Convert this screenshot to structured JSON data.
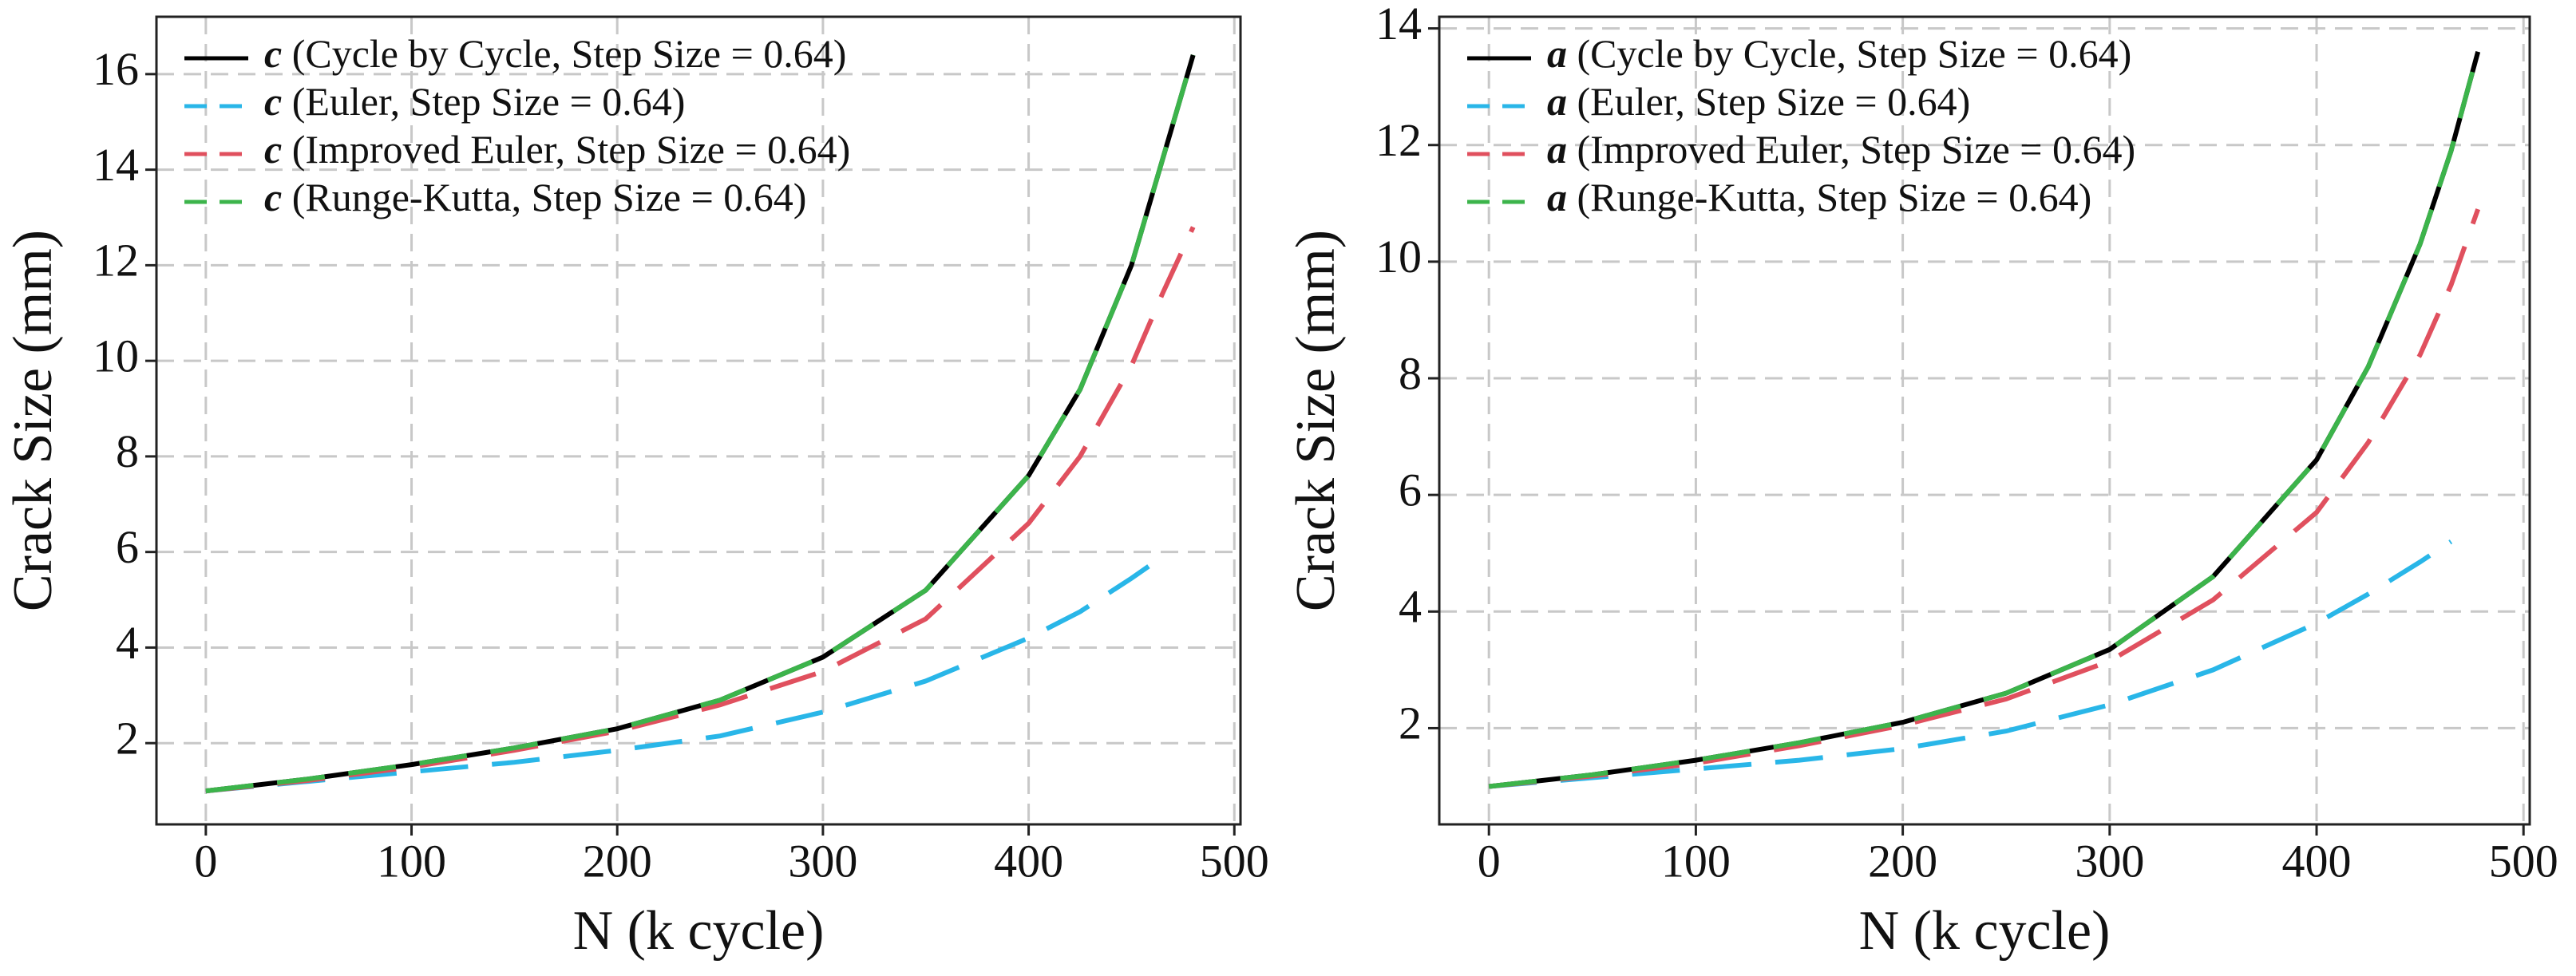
{
  "chart_data": [
    {
      "type": "line",
      "xlabel": "N (k cycle)",
      "ylabel": "Crack Size (mm)",
      "x": [
        0,
        50,
        100,
        150,
        200,
        250,
        300,
        350,
        400,
        425,
        450,
        465,
        480
      ],
      "series": [
        {
          "name": "c (Cycle by Cycle, Step Size = 0.64)",
          "color": "#000000",
          "dash": false,
          "values": [
            1.0,
            1.25,
            1.55,
            1.9,
            2.3,
            2.9,
            3.8,
            5.2,
            7.6,
            9.4,
            12.0,
            14.2,
            16.4
          ]
        },
        {
          "name": "c (Euler, Step Size = 0.64)",
          "color": "#29b6e8",
          "dash": true,
          "values": [
            1.0,
            1.2,
            1.4,
            1.6,
            1.85,
            2.15,
            2.65,
            3.3,
            4.2,
            4.75,
            5.45,
            5.9,
            null
          ]
        },
        {
          "name": "c (Improved Euler, Step Size = 0.64)",
          "color": "#e0505e",
          "dash": true,
          "values": [
            1.0,
            1.22,
            1.5,
            1.85,
            2.25,
            2.8,
            3.5,
            4.6,
            6.6,
            8.0,
            9.9,
            11.4,
            12.8
          ]
        },
        {
          "name": "c (Runge-Kutta, Step Size = 0.64)",
          "color": "#3cb44b",
          "dash": true,
          "values": [
            1.0,
            1.25,
            1.55,
            1.9,
            2.3,
            2.9,
            3.8,
            5.2,
            7.6,
            9.4,
            12.0,
            14.2,
            16.4
          ]
        }
      ],
      "xlim": [
        -24,
        503
      ],
      "xticks": [
        0,
        100,
        200,
        300,
        400,
        500
      ],
      "ylim": [
        0.3,
        17.2
      ],
      "yticks": [
        2,
        4,
        6,
        8,
        10,
        12,
        14,
        16
      ],
      "grid": true,
      "legend": "upper left"
    },
    {
      "type": "line",
      "xlabel": "N (k cycle)",
      "ylabel": "Crack Size (mm)",
      "x": [
        0,
        50,
        100,
        150,
        200,
        250,
        300,
        350,
        400,
        425,
        450,
        465,
        478
      ],
      "series": [
        {
          "name": "a (Cycle by Cycle, Step Size = 0.64)",
          "color": "#000000",
          "dash": false,
          "values": [
            1.0,
            1.2,
            1.45,
            1.75,
            2.1,
            2.6,
            3.35,
            4.6,
            6.6,
            8.2,
            10.3,
            11.9,
            13.6
          ]
        },
        {
          "name": "a (Euler, Step Size = 0.64)",
          "color": "#29b6e8",
          "dash": true,
          "values": [
            1.0,
            1.15,
            1.3,
            1.45,
            1.65,
            1.95,
            2.4,
            3.0,
            3.8,
            4.3,
            4.85,
            5.2,
            null
          ]
        },
        {
          "name": "a (Improved Euler, Step Size = 0.64)",
          "color": "#e0505e",
          "dash": true,
          "values": [
            1.0,
            1.18,
            1.4,
            1.7,
            2.05,
            2.5,
            3.15,
            4.2,
            5.7,
            6.9,
            8.4,
            9.6,
            10.9
          ]
        },
        {
          "name": "a (Runge-Kutta, Step Size = 0.64)",
          "color": "#3cb44b",
          "dash": true,
          "values": [
            1.0,
            1.2,
            1.45,
            1.75,
            2.1,
            2.6,
            3.35,
            4.6,
            6.6,
            8.2,
            10.3,
            11.9,
            13.6
          ]
        }
      ],
      "xlim": [
        -24,
        503
      ],
      "xticks": [
        0,
        100,
        200,
        300,
        400,
        500
      ],
      "ylim": [
        0.35,
        14.2
      ],
      "yticks": [
        2,
        4,
        6,
        8,
        10,
        12,
        14
      ],
      "grid": true,
      "legend": "upper left"
    }
  ]
}
